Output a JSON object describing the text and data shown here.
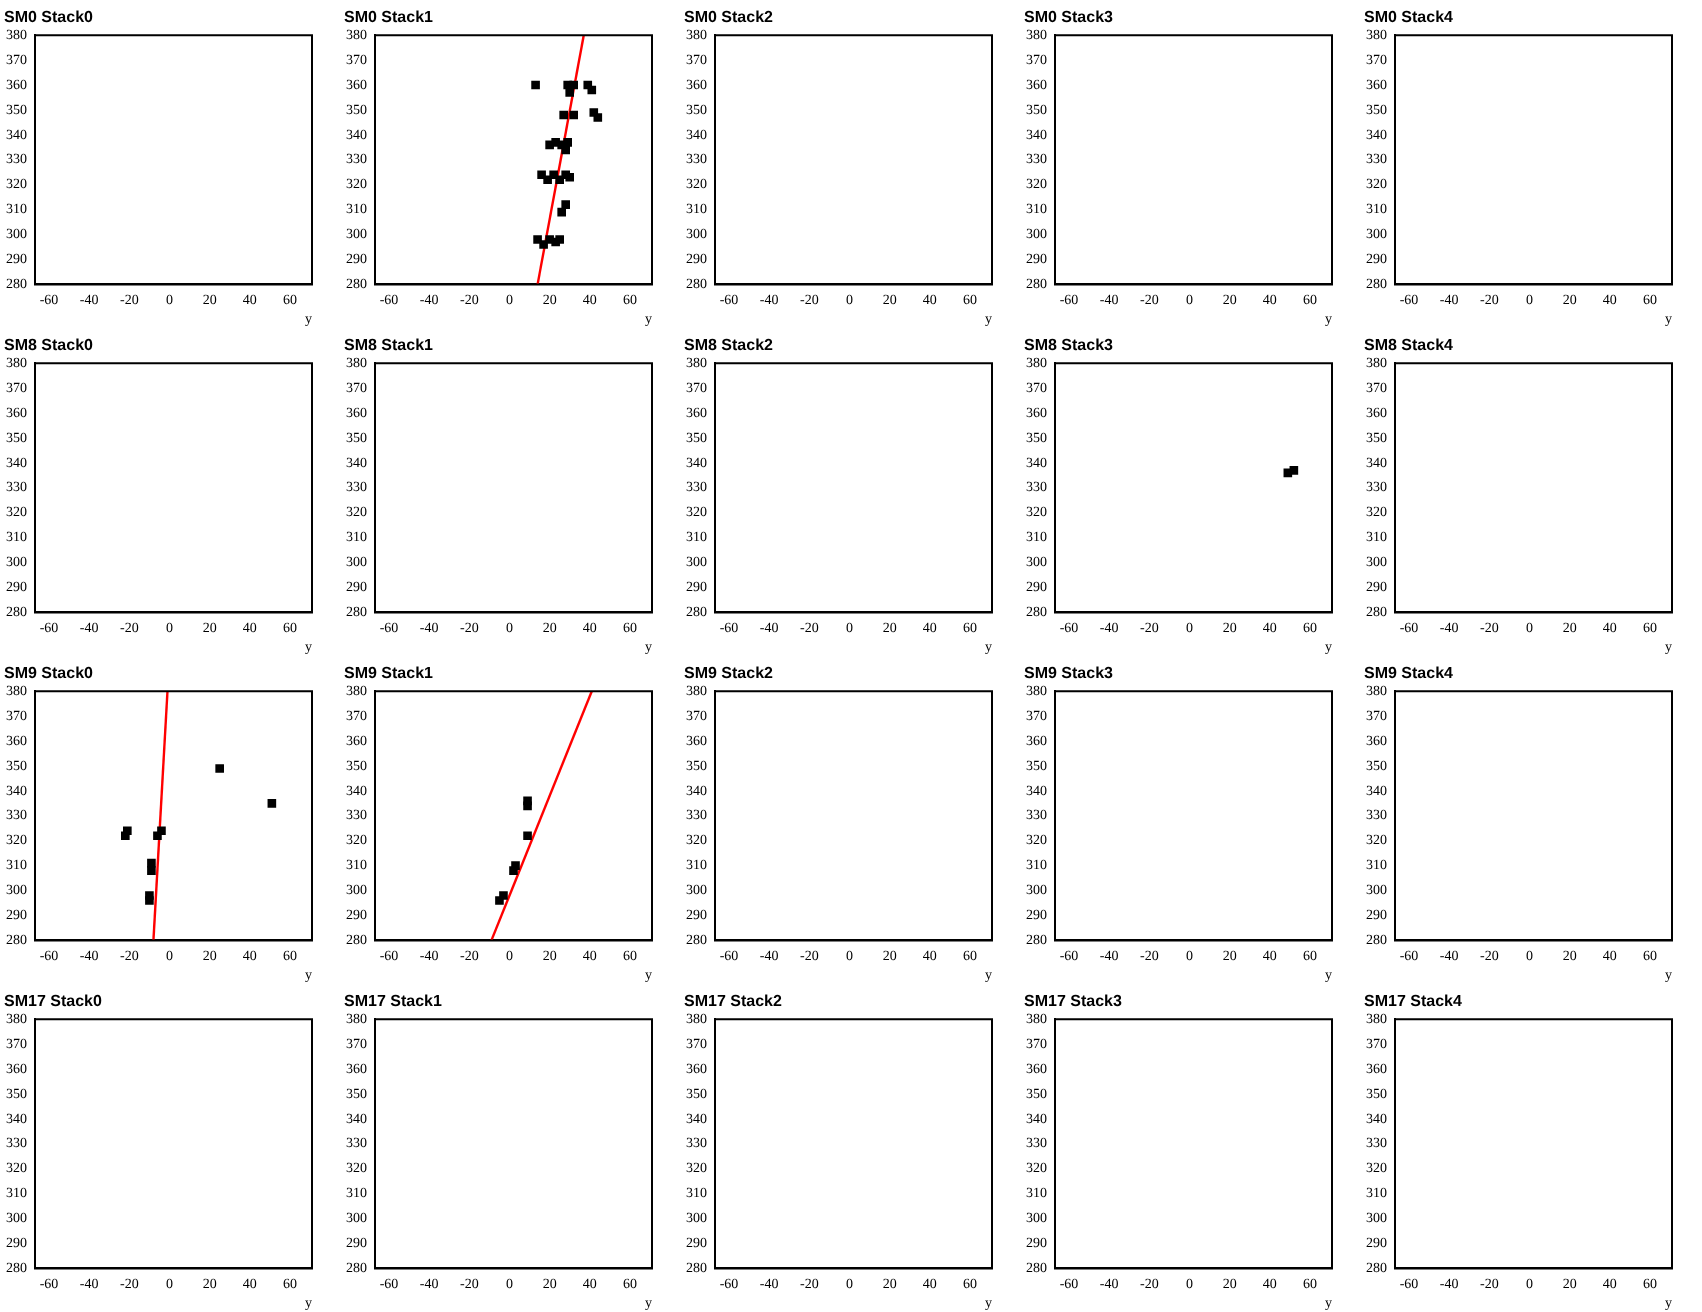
{
  "chart_data": [
    {
      "type": "scatter",
      "title": "SM0 Stack0",
      "xlabel": "y",
      "xlim": [
        -67,
        71
      ],
      "xticks": [
        -60,
        -40,
        -20,
        0,
        20,
        40,
        60
      ],
      "ylim": [
        280,
        380
      ],
      "yticks": [
        280,
        290,
        300,
        310,
        320,
        330,
        340,
        350,
        360,
        370,
        380
      ]
    },
    {
      "type": "scatter",
      "title": "SM0 Stack1",
      "xlabel": "y",
      "xlim": [
        -67,
        71
      ],
      "xticks": [
        -60,
        -40,
        -20,
        0,
        20,
        40,
        60
      ],
      "ylim": [
        280,
        380
      ],
      "yticks": [
        280,
        290,
        300,
        310,
        320,
        330,
        340,
        350,
        360,
        370,
        380
      ],
      "series": [
        {
          "type": "scatter",
          "color": "#000000",
          "marker": "square",
          "x": [
            13,
            29,
            32,
            30,
            39,
            41,
            27,
            32,
            42,
            44,
            20,
            23,
            26,
            29,
            28,
            16,
            19,
            22,
            25,
            28,
            30,
            28,
            26,
            14,
            17,
            20,
            23,
            25
          ],
          "values": [
            360,
            360,
            360,
            357,
            360,
            358,
            348,
            348,
            349,
            347,
            336,
            337,
            336,
            337,
            334,
            324,
            322,
            324,
            322,
            324,
            323,
            312,
            309,
            298,
            296,
            298,
            297,
            298
          ]
        },
        {
          "type": "line",
          "color": "#ff0000",
          "marker": "none",
          "x": [
            14,
            37
          ],
          "values": [
            280,
            380
          ]
        }
      ]
    },
    {
      "type": "scatter",
      "title": "SM0 Stack2",
      "xlabel": "y",
      "xlim": [
        -67,
        71
      ],
      "xticks": [
        -60,
        -40,
        -20,
        0,
        20,
        40,
        60
      ],
      "ylim": [
        280,
        380
      ],
      "yticks": [
        280,
        290,
        300,
        310,
        320,
        330,
        340,
        350,
        360,
        370,
        380
      ]
    },
    {
      "type": "scatter",
      "title": "SM0 Stack3",
      "xlabel": "y",
      "xlim": [
        -67,
        71
      ],
      "xticks": [
        -60,
        -40,
        -20,
        0,
        20,
        40,
        60
      ],
      "ylim": [
        280,
        380
      ],
      "yticks": [
        280,
        290,
        300,
        310,
        320,
        330,
        340,
        350,
        360,
        370,
        380
      ]
    },
    {
      "type": "scatter",
      "title": "SM0 Stack4",
      "xlabel": "y",
      "xlim": [
        -67,
        71
      ],
      "xticks": [
        -60,
        -40,
        -20,
        0,
        20,
        40,
        60
      ],
      "ylim": [
        280,
        380
      ],
      "yticks": [
        280,
        290,
        300,
        310,
        320,
        330,
        340,
        350,
        360,
        370,
        380
      ]
    },
    {
      "type": "scatter",
      "title": "SM8 Stack0",
      "xlabel": "y",
      "xlim": [
        -67,
        71
      ],
      "xticks": [
        -60,
        -40,
        -20,
        0,
        20,
        40,
        60
      ],
      "ylim": [
        280,
        380
      ],
      "yticks": [
        280,
        290,
        300,
        310,
        320,
        330,
        340,
        350,
        360,
        370,
        380
      ]
    },
    {
      "type": "scatter",
      "title": "SM8 Stack1",
      "xlabel": "y",
      "xlim": [
        -67,
        71
      ],
      "xticks": [
        -60,
        -40,
        -20,
        0,
        20,
        40,
        60
      ],
      "ylim": [
        280,
        380
      ],
      "yticks": [
        280,
        290,
        300,
        310,
        320,
        330,
        340,
        350,
        360,
        370,
        380
      ]
    },
    {
      "type": "scatter",
      "title": "SM8 Stack2",
      "xlabel": "y",
      "xlim": [
        -67,
        71
      ],
      "xticks": [
        -60,
        -40,
        -20,
        0,
        20,
        40,
        60
      ],
      "ylim": [
        280,
        380
      ],
      "yticks": [
        280,
        290,
        300,
        310,
        320,
        330,
        340,
        350,
        360,
        370,
        380
      ]
    },
    {
      "type": "scatter",
      "title": "SM8 Stack3",
      "xlabel": "y",
      "xlim": [
        -67,
        71
      ],
      "xticks": [
        -60,
        -40,
        -20,
        0,
        20,
        40,
        60
      ],
      "ylim": [
        280,
        380
      ],
      "yticks": [
        280,
        290,
        300,
        310,
        320,
        330,
        340,
        350,
        360,
        370,
        380
      ],
      "series": [
        {
          "type": "scatter",
          "color": "#000000",
          "marker": "square",
          "x": [
            49,
            52
          ],
          "values": [
            336,
            337
          ]
        }
      ]
    },
    {
      "type": "scatter",
      "title": "SM8 Stack4",
      "xlabel": "y",
      "xlim": [
        -67,
        71
      ],
      "xticks": [
        -60,
        -40,
        -20,
        0,
        20,
        40,
        60
      ],
      "ylim": [
        280,
        380
      ],
      "yticks": [
        280,
        290,
        300,
        310,
        320,
        330,
        340,
        350,
        360,
        370,
        380
      ]
    },
    {
      "type": "scatter",
      "title": "SM9 Stack0",
      "xlabel": "y",
      "xlim": [
        -67,
        71
      ],
      "xticks": [
        -60,
        -40,
        -20,
        0,
        20,
        40,
        60
      ],
      "ylim": [
        280,
        380
      ],
      "yticks": [
        280,
        290,
        300,
        310,
        320,
        330,
        340,
        350,
        360,
        370,
        380
      ],
      "series": [
        {
          "type": "scatter",
          "color": "#000000",
          "marker": "square",
          "x": [
            -21,
            -22,
            -4,
            -6,
            -9,
            -9,
            -10,
            -10,
            25,
            51
          ],
          "values": [
            324,
            322,
            324,
            322,
            311,
            308,
            298,
            296,
            349,
            335
          ]
        },
        {
          "type": "line",
          "color": "#ff0000",
          "marker": "none",
          "x": [
            -8,
            -1
          ],
          "values": [
            280,
            380
          ]
        }
      ]
    },
    {
      "type": "scatter",
      "title": "SM9 Stack1",
      "xlabel": "y",
      "xlim": [
        -67,
        71
      ],
      "xticks": [
        -60,
        -40,
        -20,
        0,
        20,
        40,
        60
      ],
      "ylim": [
        280,
        380
      ],
      "yticks": [
        280,
        290,
        300,
        310,
        320,
        330,
        340,
        350,
        360,
        370,
        380
      ],
      "series": [
        {
          "type": "scatter",
          "color": "#000000",
          "marker": "square",
          "x": [
            9,
            9,
            9,
            3,
            2,
            -3,
            -5
          ],
          "values": [
            336,
            334,
            322,
            310,
            308,
            298,
            296
          ]
        },
        {
          "type": "line",
          "color": "#ff0000",
          "marker": "none",
          "x": [
            -9,
            41
          ],
          "values": [
            280,
            380
          ]
        }
      ]
    },
    {
      "type": "scatter",
      "title": "SM9 Stack2",
      "xlabel": "y",
      "xlim": [
        -67,
        71
      ],
      "xticks": [
        -60,
        -40,
        -20,
        0,
        20,
        40,
        60
      ],
      "ylim": [
        280,
        380
      ],
      "yticks": [
        280,
        290,
        300,
        310,
        320,
        330,
        340,
        350,
        360,
        370,
        380
      ]
    },
    {
      "type": "scatter",
      "title": "SM9 Stack3",
      "xlabel": "y",
      "xlim": [
        -67,
        71
      ],
      "xticks": [
        -60,
        -40,
        -20,
        0,
        20,
        40,
        60
      ],
      "ylim": [
        280,
        380
      ],
      "yticks": [
        280,
        290,
        300,
        310,
        320,
        330,
        340,
        350,
        360,
        370,
        380
      ]
    },
    {
      "type": "scatter",
      "title": "SM9 Stack4",
      "xlabel": "y",
      "xlim": [
        -67,
        71
      ],
      "xticks": [
        -60,
        -40,
        -20,
        0,
        20,
        40,
        60
      ],
      "ylim": [
        280,
        380
      ],
      "yticks": [
        280,
        290,
        300,
        310,
        320,
        330,
        340,
        350,
        360,
        370,
        380
      ]
    },
    {
      "type": "scatter",
      "title": "SM17 Stack0",
      "xlabel": "y",
      "xlim": [
        -67,
        71
      ],
      "xticks": [
        -60,
        -40,
        -20,
        0,
        20,
        40,
        60
      ],
      "ylim": [
        280,
        380
      ],
      "yticks": [
        280,
        290,
        300,
        310,
        320,
        330,
        340,
        350,
        360,
        370,
        380
      ]
    },
    {
      "type": "scatter",
      "title": "SM17 Stack1",
      "xlabel": "y",
      "xlim": [
        -67,
        71
      ],
      "xticks": [
        -60,
        -40,
        -20,
        0,
        20,
        40,
        60
      ],
      "ylim": [
        280,
        380
      ],
      "yticks": [
        280,
        290,
        300,
        310,
        320,
        330,
        340,
        350,
        360,
        370,
        380
      ]
    },
    {
      "type": "scatter",
      "title": "SM17 Stack2",
      "xlabel": "y",
      "xlim": [
        -67,
        71
      ],
      "xticks": [
        -60,
        -40,
        -20,
        0,
        20,
        40,
        60
      ],
      "ylim": [
        280,
        380
      ],
      "yticks": [
        280,
        290,
        300,
        310,
        320,
        330,
        340,
        350,
        360,
        370,
        380
      ]
    },
    {
      "type": "scatter",
      "title": "SM17 Stack3",
      "xlabel": "y",
      "xlim": [
        -67,
        71
      ],
      "xticks": [
        -60,
        -40,
        -20,
        0,
        20,
        40,
        60
      ],
      "ylim": [
        280,
        380
      ],
      "yticks": [
        280,
        290,
        300,
        310,
        320,
        330,
        340,
        350,
        360,
        370,
        380
      ]
    },
    {
      "type": "scatter",
      "title": "SM17 Stack4",
      "xlabel": "y",
      "xlim": [
        -67,
        71
      ],
      "xticks": [
        -60,
        -40,
        -20,
        0,
        20,
        40,
        60
      ],
      "ylim": [
        280,
        380
      ],
      "yticks": [
        280,
        290,
        300,
        310,
        320,
        330,
        340,
        350,
        360,
        370,
        380
      ]
    }
  ]
}
